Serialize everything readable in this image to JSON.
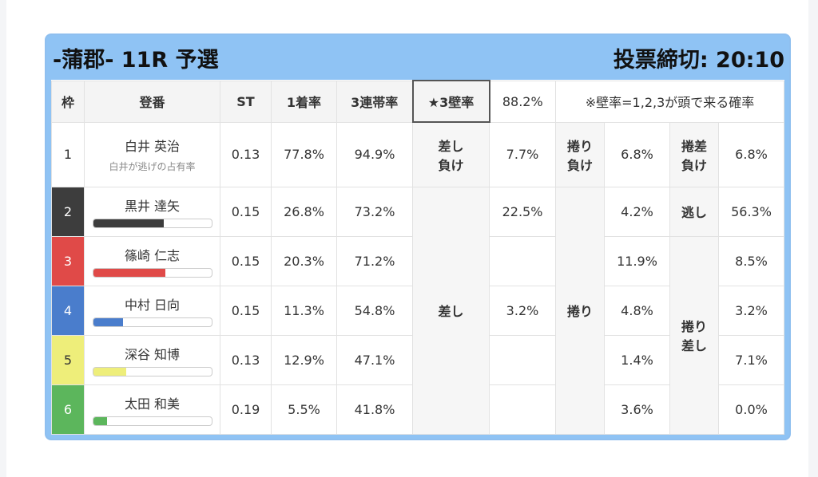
{
  "header": {
    "title": "-蒲郡- 11R 予選",
    "deadline": "投票締切: 20:10"
  },
  "table": {
    "columns": [
      "枠",
      "登番",
      "ST",
      "1着率",
      "3連帯率",
      "★3壁率",
      "88.2%",
      "※壁率=1,2,3が頭で来る確率"
    ],
    "merged": {
      "sashi_lose": "差し\n負け",
      "sashi": "差し",
      "makuri_lose": "捲り\n負け",
      "makuri": "捲り",
      "makurisashi_lose": "捲差\n負け",
      "nige_lose": "逃し",
      "makurisashi": "捲り\n差し"
    },
    "rows": [
      {
        "lane": "1",
        "color": "#ffffff",
        "name": "白井 英治",
        "sub": "白井が逃げの占有率",
        "st": "0.13",
        "win": "77.8%",
        "top3": "94.9%",
        "c7": "7.7%",
        "c9": "6.8%",
        "c11": "6.8%"
      },
      {
        "lane": "2",
        "color": "#3d3d3d",
        "name": "黒井 達矢",
        "bar": 60,
        "st": "0.15",
        "win": "26.8%",
        "top3": "73.2%",
        "c7": "22.5%",
        "c9": "4.2%",
        "c11": "56.3%"
      },
      {
        "lane": "3",
        "color": "#e04a48",
        "name": "篠崎 仁志",
        "bar": 61,
        "st": "0.15",
        "win": "20.3%",
        "top3": "71.2%",
        "c9": "11.9%",
        "c11": "8.5%"
      },
      {
        "lane": "4",
        "color": "#4a7dcc",
        "name": "中村 日向",
        "bar": 25,
        "st": "0.15",
        "win": "11.3%",
        "top3": "54.8%",
        "c7": "3.2%",
        "c9": "4.8%",
        "c11": "3.2%"
      },
      {
        "lane": "5",
        "color": "#eeee7a",
        "name": "深谷 知博",
        "bar": 28,
        "st": "0.13",
        "win": "12.9%",
        "top3": "47.1%",
        "c9": "1.4%",
        "c11": "7.1%"
      },
      {
        "lane": "6",
        "color": "#5cb65c",
        "name": "太田 和美",
        "bar": 12,
        "st": "0.19",
        "win": "5.5%",
        "top3": "41.8%",
        "c9": "3.6%",
        "c11": "0.0%"
      }
    ]
  }
}
